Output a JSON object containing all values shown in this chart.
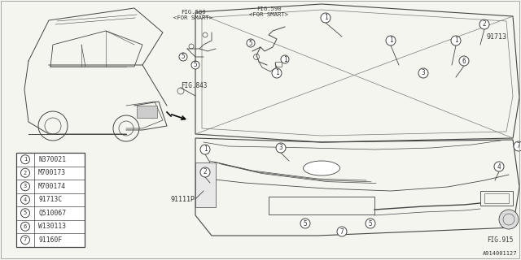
{
  "background_color": "#f5f5f0",
  "line_color": "#444444",
  "text_color": "#333333",
  "light_line": "#777777",
  "part_numbers": [
    {
      "num": 1,
      "code": "N370021"
    },
    {
      "num": 2,
      "code": "M700173"
    },
    {
      "num": 3,
      "code": "M700174"
    },
    {
      "num": 4,
      "code": "91713C"
    },
    {
      "num": 5,
      "code": "Q510067"
    },
    {
      "num": 6,
      "code": "W130113"
    },
    {
      "num": 7,
      "code": "91160F"
    }
  ],
  "labels": {
    "fig580": "FIG.580\n<FOR SMART>",
    "fig590": "FIG.590\n<FOR SMART>",
    "fig843": "FIG.843",
    "fig915": "FIG.915",
    "label_91713": "91713",
    "label_91111P": "91111P",
    "diagram_code": "A914001127"
  }
}
